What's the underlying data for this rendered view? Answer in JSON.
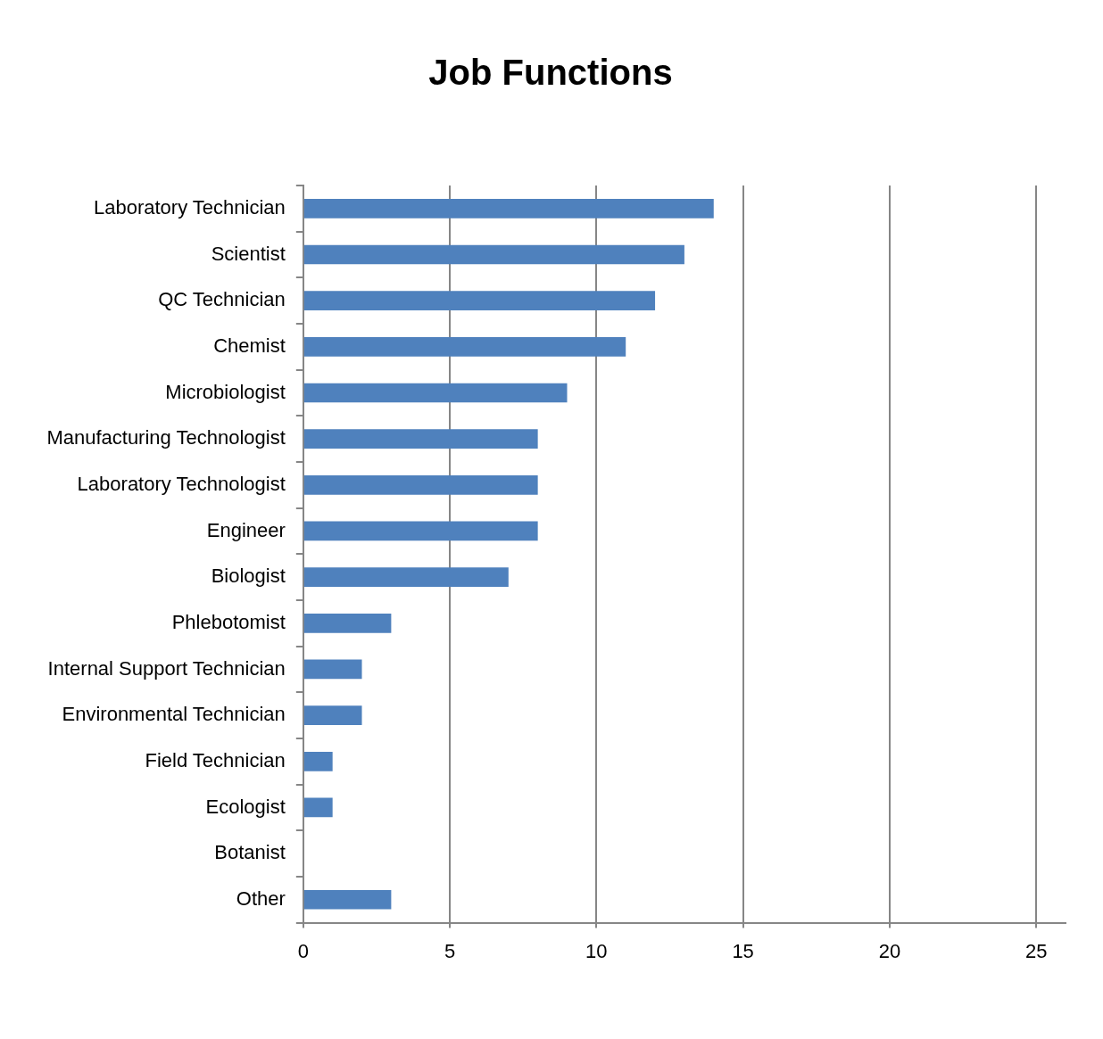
{
  "chart_data": {
    "type": "bar",
    "orientation": "horizontal",
    "title": "Job Functions",
    "categories": [
      "Laboratory Technician",
      "Scientist",
      "QC Technician",
      "Chemist",
      "Microbiologist",
      "Manufacturing Technologist",
      "Laboratory Technologist",
      "Engineer",
      "Biologist",
      "Phlebotomist",
      "Internal Support Technician",
      "Environmental Technician",
      "Field Technician",
      "Ecologist",
      "Botanist",
      "Other"
    ],
    "values": [
      14,
      13,
      12,
      11,
      9,
      8,
      8,
      8,
      7,
      3,
      2,
      2,
      1,
      1,
      0,
      3
    ],
    "color": "#4f81bd",
    "xlim": [
      0,
      26
    ],
    "xticks": [
      0,
      5,
      10,
      15,
      20,
      25
    ],
    "grid": "x",
    "legend": false
  }
}
